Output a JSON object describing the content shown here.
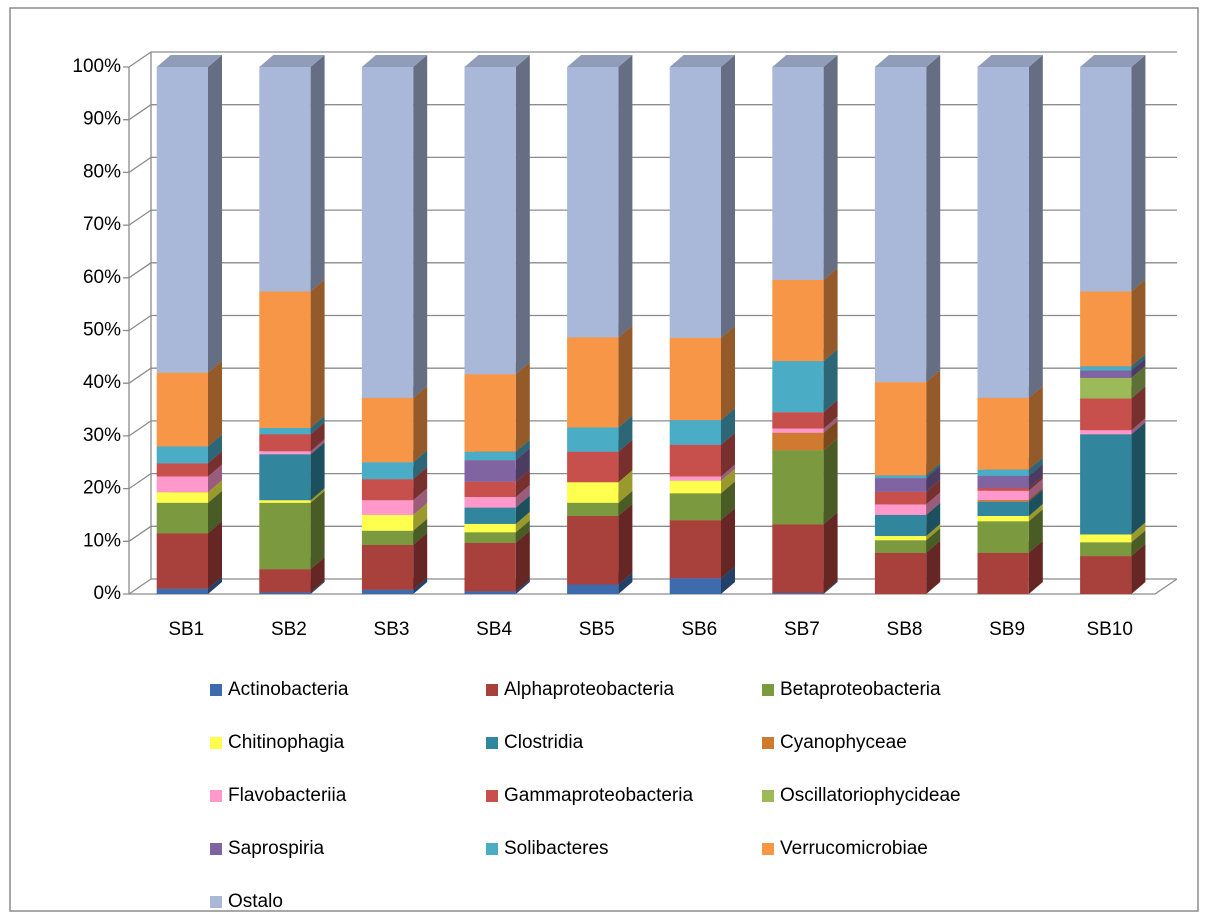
{
  "chart_data": {
    "type": "stacked-bar-3d",
    "categories": [
      "SB1",
      "SB2",
      "SB3",
      "SB4",
      "SB5",
      "SB6",
      "SB7",
      "SB8",
      "SB9",
      "SB10"
    ],
    "ylim": [
      0,
      100
    ],
    "yticks": [
      {
        "value": 0,
        "label": "0%"
      },
      {
        "value": 10,
        "label": "10%"
      },
      {
        "value": 20,
        "label": "20%"
      },
      {
        "value": 30,
        "label": "30%"
      },
      {
        "value": 40,
        "label": "40%"
      },
      {
        "value": 50,
        "label": "50%"
      },
      {
        "value": 60,
        "label": "60%"
      },
      {
        "value": 70,
        "label": "70%"
      },
      {
        "value": 80,
        "label": "80%"
      },
      {
        "value": 90,
        "label": "90%"
      },
      {
        "value": 100,
        "label": "100%"
      }
    ],
    "grid": true,
    "legend": "bottom",
    "series": [
      {
        "name": "Actinobacteria",
        "color": "#3e6bad",
        "values": [
          1,
          0.3,
          0.8,
          0.5,
          1.8,
          3,
          0.2,
          0,
          0,
          0
        ]
      },
      {
        "name": "Alphaproteobacteria",
        "color": "#a8403c",
        "values": [
          10.5,
          4.4,
          8.5,
          9.2,
          13,
          11,
          13,
          7.8,
          7.8,
          7.2
        ]
      },
      {
        "name": "Betaproteobacteria",
        "color": "#7b9a3f",
        "values": [
          5.8,
          12.6,
          2.7,
          2,
          2.5,
          5.1,
          14.1,
          2.4,
          6,
          2.6
        ]
      },
      {
        "name": "Chitinophagia",
        "color": "#ffff4d",
        "values": [
          2,
          0.5,
          3,
          1.6,
          3.9,
          2.4,
          0,
          0.8,
          1,
          1.5
        ]
      },
      {
        "name": "Clostridia",
        "color": "#31859c",
        "values": [
          0,
          8.7,
          0,
          3.1,
          0,
          0,
          0,
          4,
          2.7,
          19
        ]
      },
      {
        "name": "Cyanophyceae",
        "color": "#d07a2f",
        "values": [
          0,
          0,
          0,
          0,
          0,
          0,
          3.3,
          0,
          0.3,
          0
        ]
      },
      {
        "name": "Flavobacteriia",
        "color": "#ff99cc",
        "values": [
          3,
          0.6,
          2.8,
          2,
          0,
          0.8,
          0.8,
          2,
          1.8,
          0.8
        ]
      },
      {
        "name": "Gammaproteobacteria",
        "color": "#c8504c",
        "values": [
          2.5,
          3.2,
          4,
          2.9,
          5.8,
          6,
          3.1,
          2.4,
          0.5,
          6
        ]
      },
      {
        "name": "Oscillatoriophycideae",
        "color": "#9bbb59",
        "values": [
          0,
          0,
          0,
          0,
          0,
          0,
          0,
          0,
          0,
          3.9
        ]
      },
      {
        "name": "Saprospiria",
        "color": "#8064a2",
        "values": [
          0,
          0,
          0,
          4.1,
          0,
          0,
          0,
          2.6,
          2.3,
          1.4
        ]
      },
      {
        "name": "Solibacteres",
        "color": "#4bacc6",
        "values": [
          3.2,
          1.2,
          3.2,
          1.6,
          4.6,
          4.7,
          9.7,
          0.5,
          1.2,
          0.8
        ]
      },
      {
        "name": "Verrucomicrobiae",
        "color": "#f79646",
        "values": [
          14,
          25.9,
          12.2,
          14.7,
          17.1,
          15.6,
          15.4,
          17.7,
          13.6,
          14.2
        ]
      },
      {
        "name": "Ostalo",
        "color": "#a9b8d8",
        "values": [
          58,
          42.6,
          62.8,
          58.3,
          51.3,
          51.4,
          40.4,
          59.8,
          62.8,
          42.6
        ]
      }
    ]
  }
}
